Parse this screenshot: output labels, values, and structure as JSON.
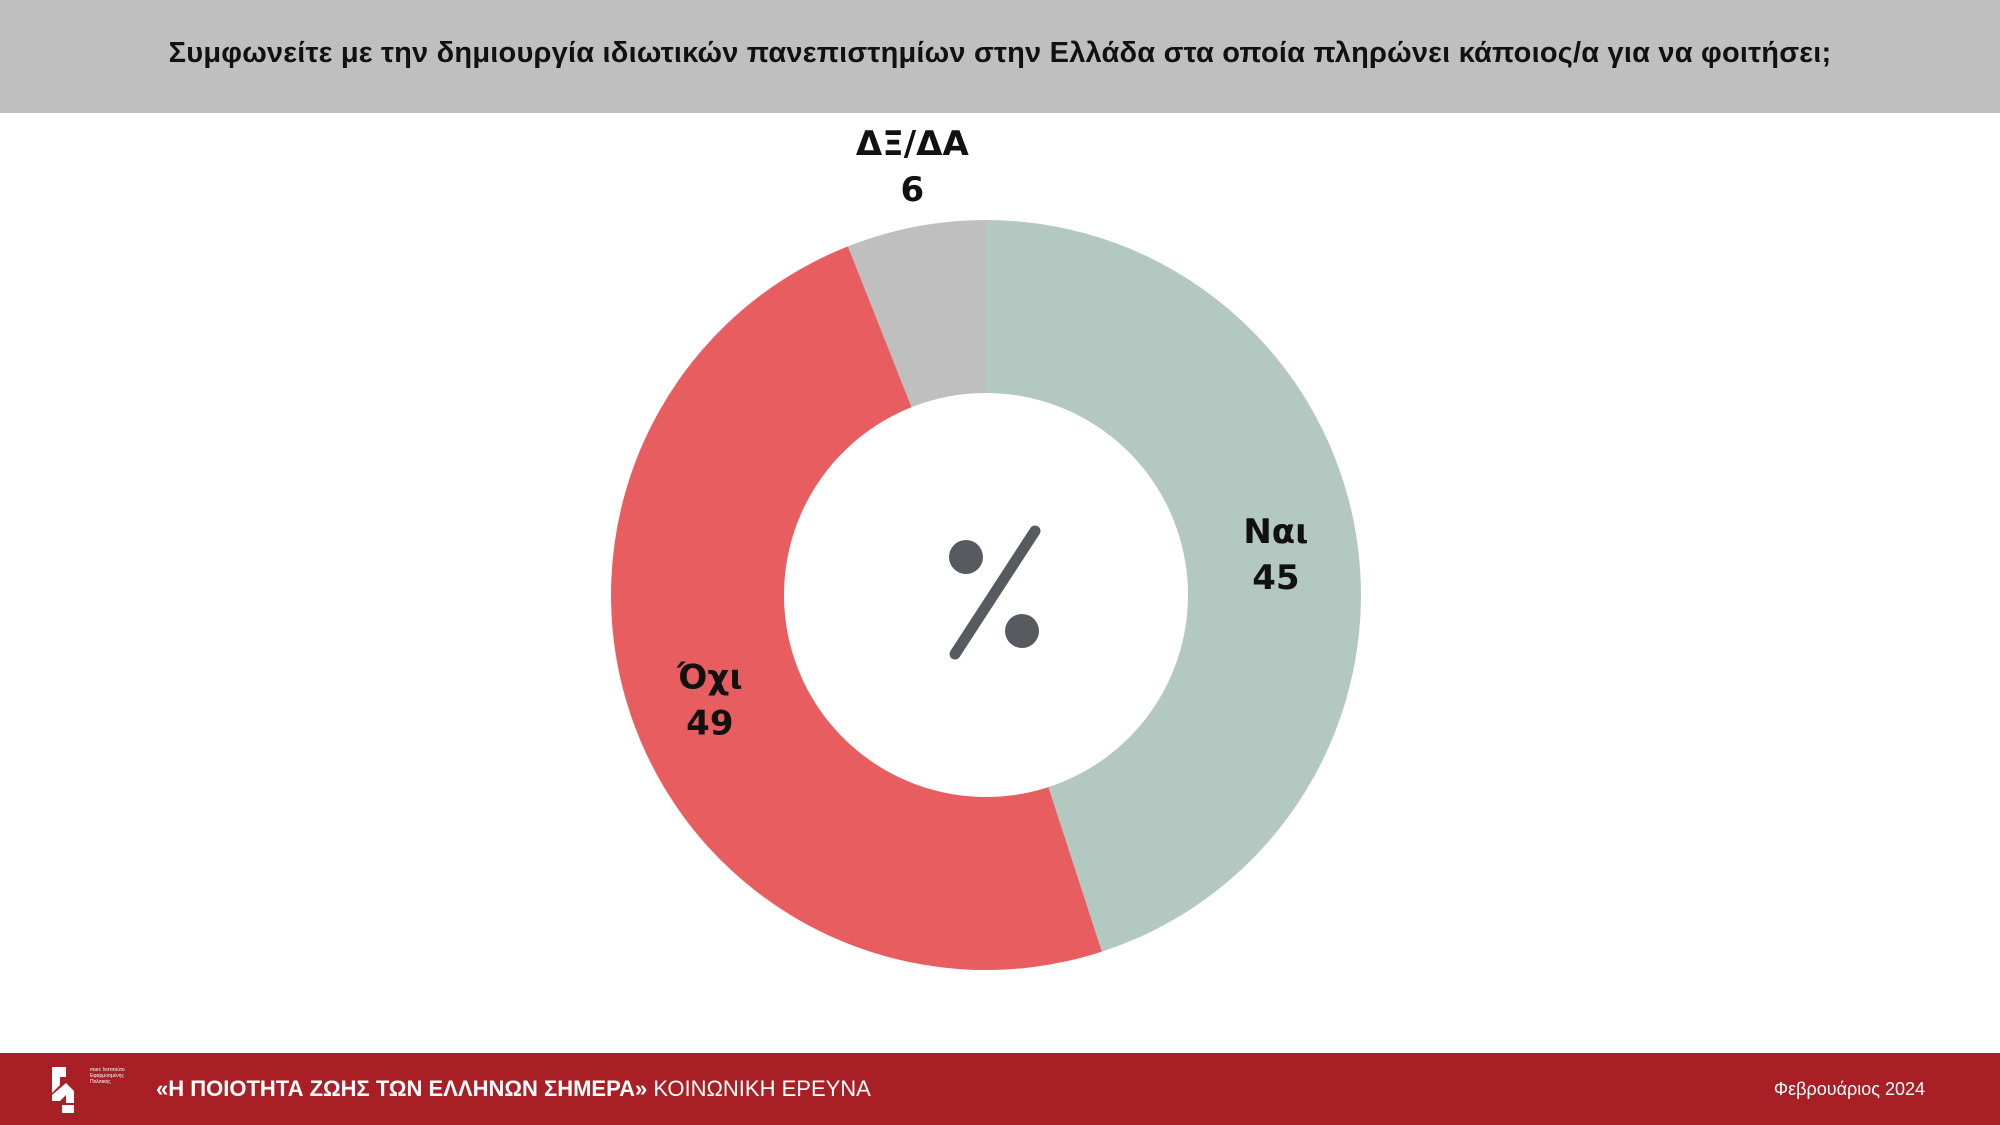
{
  "header": {
    "title": "Συμφωνείτε με την δημιουργία ιδιωτικών πανεπιστημίων στην Ελλάδα στα οποία πληρώνει κάποιος/α για να φοιτήσει;"
  },
  "chart_data": {
    "type": "pie",
    "style": "donut",
    "center_symbol": "%",
    "slices": [
      {
        "label": "Ναι",
        "value": 45,
        "color": "#b3c8c1"
      },
      {
        "label": "Όχι",
        "value": 49,
        "color": "#e85e60"
      },
      {
        "label": "ΔΞ/ΔΑ",
        "value": 6,
        "color": "#bfbfbf"
      }
    ]
  },
  "footer": {
    "logo_text": "marc Ινστιτούτο Εφαρμοσμένης Πολιτικής",
    "survey_title": "«Η ΠΟΙΟΤΗΤΑ ΖΩΗΣ ΤΩΝ ΕΛΛΗΝΩΝ ΣΗΜΕΡΑ»",
    "survey_subtitle": " ΚΟΙΝΩΝΙΚΗ ΕΡΕΥΝΑ",
    "date": "Φεβρουάριος 2024"
  },
  "colors": {
    "header_bg": "#bfbfbf",
    "footer_bg": "#a81f25",
    "center_symbol": "#575a5f"
  }
}
